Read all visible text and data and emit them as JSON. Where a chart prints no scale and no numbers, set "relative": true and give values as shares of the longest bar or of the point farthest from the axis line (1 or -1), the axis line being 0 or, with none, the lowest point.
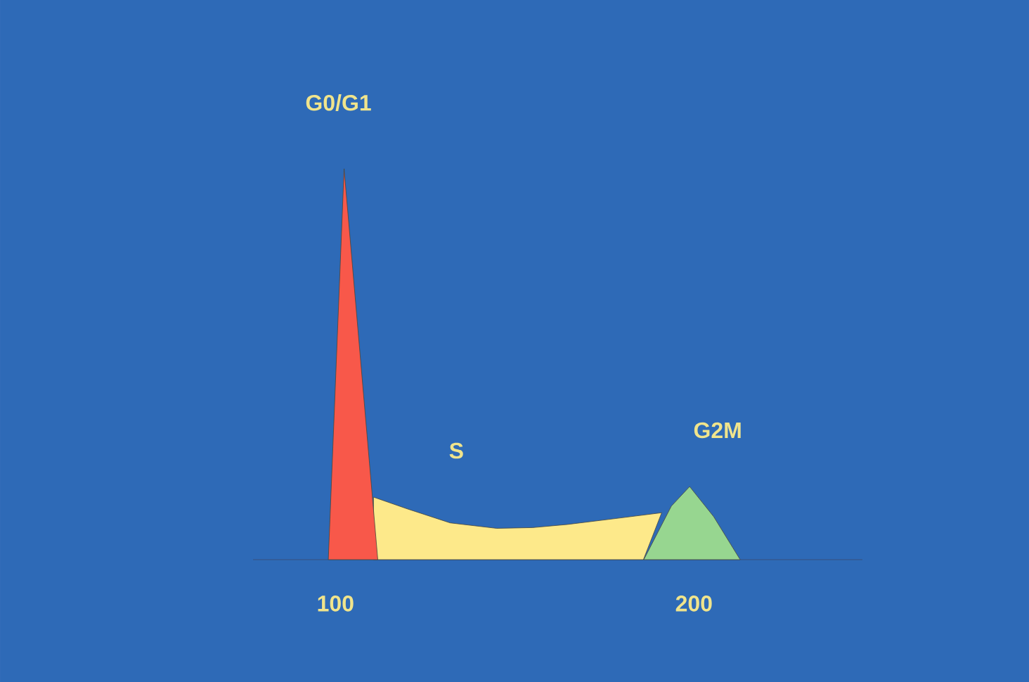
{
  "chart_data": {
    "type": "area",
    "relative": true,
    "xlim": [
      77,
      247
    ],
    "xticks": [
      100,
      200
    ],
    "series": [
      {
        "name": "S",
        "color": "#fde98a",
        "x": [
          110.6,
          110.6,
          120,
          132,
          145,
          155,
          164.7,
          178,
          191,
          185.9
        ],
        "values": [
          0,
          0.16,
          0.13,
          0.094,
          0.08,
          0.082,
          0.09,
          0.105,
          0.12,
          0
        ]
      },
      {
        "name": "G0/G1",
        "color": "#f8584a",
        "x": [
          98,
          102.4,
          111.8
        ],
        "values": [
          0,
          1,
          0
        ]
      },
      {
        "name": "G2M",
        "color": "#97d690",
        "x": [
          186,
          193.7,
          198.8,
          205.5,
          212.9
        ],
        "values": [
          0,
          0.137,
          0.187,
          0.11,
          0
        ]
      }
    ]
  }
}
